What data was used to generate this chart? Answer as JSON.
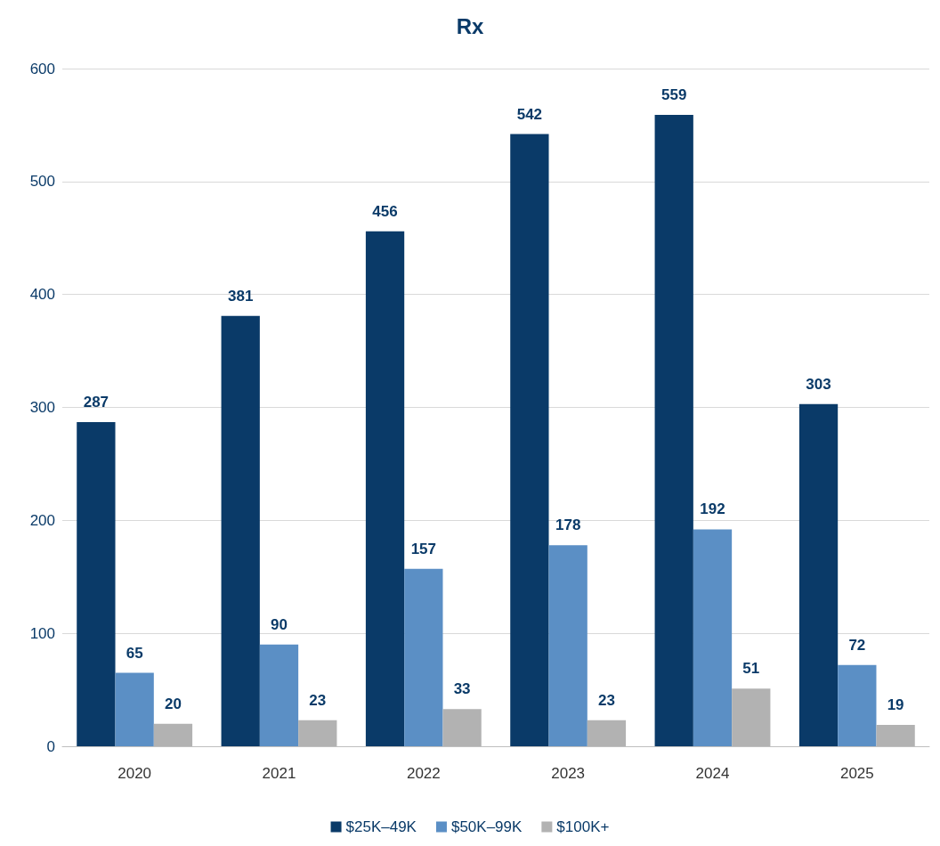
{
  "chart_data": {
    "type": "bar",
    "title": "Rx",
    "categories": [
      "2020",
      "2021",
      "2022",
      "2023",
      "2024",
      "2025"
    ],
    "series": [
      {
        "name": "$25K–49K",
        "color": "#0a3a68",
        "values": [
          287,
          381,
          456,
          542,
          559,
          303
        ]
      },
      {
        "name": "$50K–99K",
        "color": "#5b8fc5",
        "values": [
          65,
          90,
          157,
          178,
          192,
          72
        ]
      },
      {
        "name": "$100K+",
        "color": "#b2b2b2",
        "values": [
          20,
          23,
          33,
          23,
          51,
          19
        ]
      }
    ],
    "ylim": [
      0,
      600
    ],
    "yticks": [
      0,
      100,
      200,
      300,
      400,
      500,
      600
    ],
    "grid": "y",
    "legend": "bottom",
    "data_labels": true
  }
}
